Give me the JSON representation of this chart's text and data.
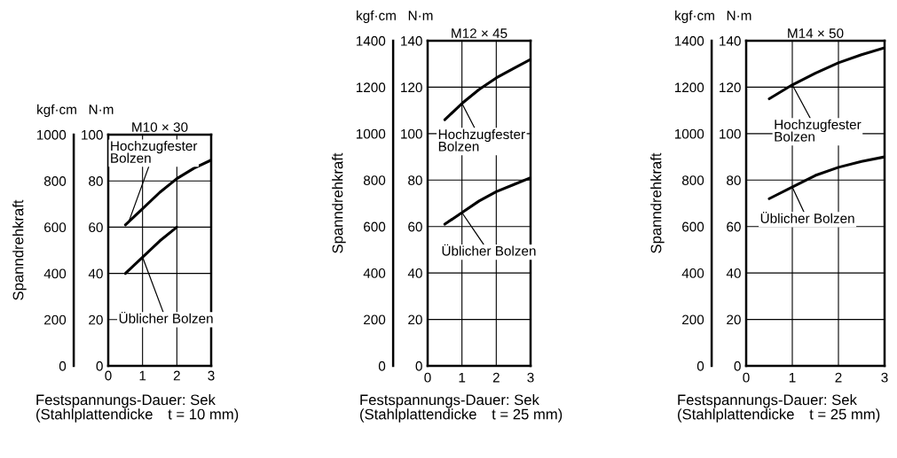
{
  "chart_data": [
    {
      "type": "line",
      "title": "M10 × 30",
      "xlabel": "Festspannungs-Dauer: Sek",
      "ylabel": "Spanndrehkraft",
      "y2label": "N·m",
      "annotations": [
        "kgf·cm",
        "(Stahlplattendicke t = 10 mm)"
      ],
      "x": [
        0.5,
        1,
        1.5,
        2,
        2.5,
        3
      ],
      "xlim": [
        0,
        3
      ],
      "xticks": [
        0,
        1,
        2,
        3
      ],
      "ylim": [
        0,
        1000
      ],
      "yticks": [
        0,
        200,
        400,
        600,
        800,
        1000
      ],
      "y2lim": [
        0,
        100
      ],
      "y2ticks": [
        0,
        20,
        40,
        60,
        80,
        100
      ],
      "grid": true,
      "legend": "left",
      "marker": "none",
      "line_style": "solid",
      "series": [
        {
          "name": "Hochzugfester\nBolzen",
          "color": "#000000",
          "axis": "y2",
          "values": [
            61,
            68,
            75,
            81,
            85.5,
            89
          ]
        },
        {
          "name": "Üblicher Bolzen",
          "color": "#000000",
          "axis": "y2",
          "values": [
            40,
            47,
            54,
            60,
            null,
            null
          ]
        }
      ]
    },
    {
      "type": "line",
      "title": "M12 × 45",
      "xlabel": "Festspannungs-Dauer: Sek",
      "ylabel": "Spanndrehkraft",
      "y2label": "N·m",
      "annotations": [
        "kgf·cm",
        "(Stahlplattendicke t = 25 mm)"
      ],
      "x": [
        0.5,
        1,
        1.5,
        2,
        2.5,
        3
      ],
      "xlim": [
        0,
        3
      ],
      "xticks": [
        0,
        1,
        2,
        3
      ],
      "ylim": [
        0,
        1400
      ],
      "yticks": [
        0,
        200,
        400,
        600,
        800,
        1000,
        1200,
        1400
      ],
      "y2lim": [
        0,
        140
      ],
      "y2ticks": [
        0,
        20,
        40,
        60,
        80,
        100,
        120,
        140
      ],
      "grid": true,
      "legend": "top right",
      "marker": "none",
      "line_style": "solid",
      "series": [
        {
          "name": "Hochzugfester\nBolzen",
          "color": "#000000",
          "axis": "y2",
          "values": [
            106,
            113,
            119,
            124,
            128,
            132
          ]
        },
        {
          "name": "Üblicher Bolzen",
          "color": "#000000",
          "axis": "y2",
          "values": [
            61,
            66,
            71,
            75,
            78,
            81
          ]
        }
      ]
    },
    {
      "type": "line",
      "title": "M14 × 50",
      "xlabel": "Festspannungs-Dauer: Sek",
      "ylabel": "Spanndrehkraft",
      "y2label": "N·m",
      "annotations": [
        "kgf·cm",
        "(Stahlplattendicke t = 25 mm)"
      ],
      "x": [
        0.5,
        1,
        1.5,
        2,
        2.5,
        3
      ],
      "xlim": [
        0,
        3
      ],
      "xticks": [
        0,
        1,
        2,
        3
      ],
      "ylim": [
        0,
        1400
      ],
      "yticks": [
        0,
        200,
        400,
        600,
        800,
        1000,
        1200,
        1400
      ],
      "y2lim": [
        0,
        140
      ],
      "y2ticks": [
        0,
        20,
        40,
        60,
        80,
        100,
        120,
        140
      ],
      "grid": true,
      "legend": "left",
      "marker": "none",
      "line_style": "solid",
      "series": [
        {
          "name": "Hochzugfester\nBolzen",
          "color": "#000000",
          "axis": "y2",
          "values": [
            115,
            121,
            126,
            130.5,
            134,
            137
          ]
        },
        {
          "name": "Üblicher Bolzen",
          "color": "#000000",
          "axis": "y2",
          "values": [
            72,
            77,
            82,
            85.5,
            88,
            90
          ]
        }
      ]
    }
  ]
}
